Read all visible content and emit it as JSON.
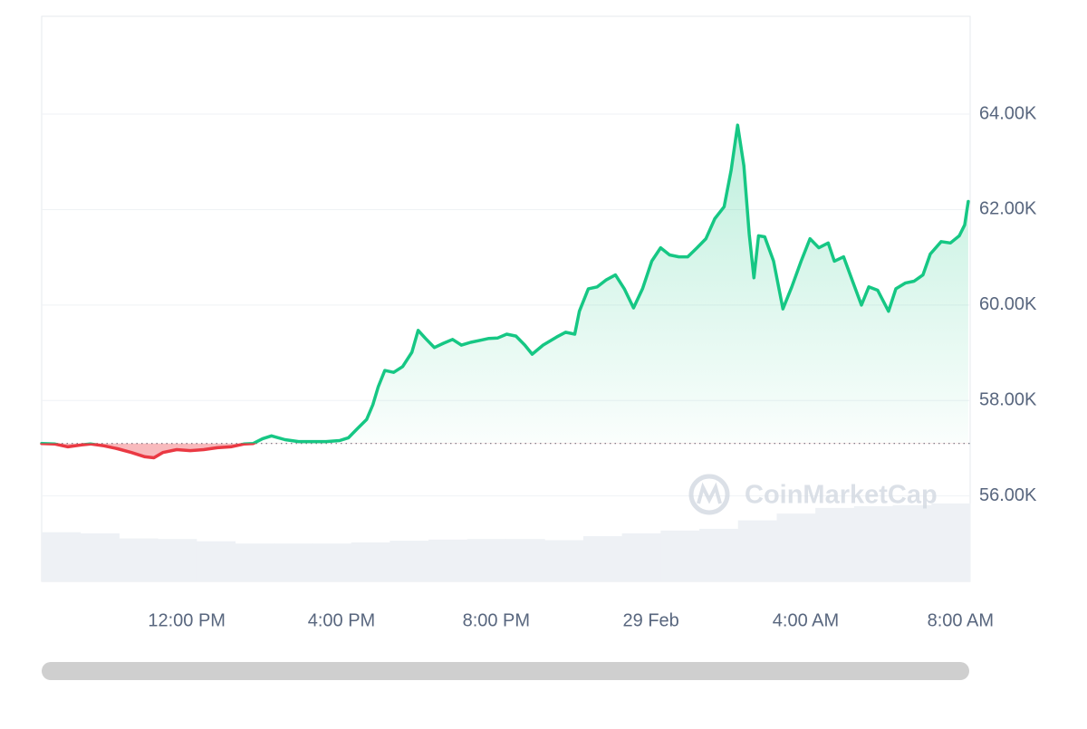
{
  "chart_data": {
    "type": "line",
    "watermark": "CoinMarketCap",
    "x": [
      8.25,
      8.58,
      8.93,
      9.28,
      9.51,
      9.86,
      10.21,
      10.57,
      10.92,
      11.15,
      11.38,
      11.74,
      12.09,
      12.44,
      12.79,
      13.14,
      13.49,
      13.72,
      13.96,
      14.19,
      14.54,
      14.89,
      15.24,
      15.6,
      15.95,
      16.18,
      16.41,
      16.65,
      16.81,
      16.95,
      17.12,
      17.35,
      17.58,
      17.82,
      17.98,
      18.17,
      18.4,
      18.64,
      18.87,
      19.1,
      19.34,
      19.57,
      19.81,
      20.04,
      20.27,
      20.51,
      20.74,
      20.93,
      21.21,
      21.56,
      21.79,
      22.03,
      22.15,
      22.38,
      22.61,
      22.85,
      23.08,
      23.31,
      23.55,
      23.78,
      24.02,
      24.25,
      24.48,
      24.72,
      24.95,
      25.19,
      25.42,
      25.65,
      25.89,
      26.07,
      26.24,
      26.4,
      26.54,
      26.66,
      26.78,
      26.94,
      27.17,
      27.41,
      27.64,
      27.88,
      28.11,
      28.34,
      28.58,
      28.74,
      28.98,
      29.21,
      29.44,
      29.63,
      29.86,
      30.14,
      30.33,
      30.57,
      30.8,
      31.03,
      31.22,
      31.5,
      31.74,
      31.97,
      32.11,
      32.2
    ],
    "values": [
      57100,
      57090,
      57030,
      57070,
      57090,
      57050,
      56990,
      56910,
      56820,
      56800,
      56910,
      56970,
      56950,
      56970,
      57010,
      57030,
      57090,
      57100,
      57200,
      57260,
      57180,
      57140,
      57140,
      57140,
      57160,
      57220,
      57410,
      57600,
      57910,
      58290,
      58630,
      58590,
      58710,
      59010,
      59470,
      59300,
      59110,
      59200,
      59280,
      59160,
      59220,
      59260,
      59300,
      59310,
      59390,
      59350,
      59160,
      58970,
      59160,
      59330,
      59430,
      59390,
      59870,
      60340,
      60380,
      60530,
      60630,
      60340,
      59940,
      60340,
      60920,
      61200,
      61050,
      61010,
      61010,
      61200,
      61390,
      61810,
      62060,
      62820,
      63770,
      62920,
      61490,
      60570,
      61450,
      61430,
      60920,
      59920,
      60380,
      60920,
      61390,
      61200,
      61300,
      60920,
      61010,
      60500,
      60000,
      60380,
      60310,
      59870,
      60340,
      60460,
      60500,
      60630,
      61070,
      61330,
      61300,
      61450,
      61680,
      62170
    ],
    "baseline": 57100,
    "color_up": "#16c784",
    "color_down": "#ea3943",
    "xlim": [
      8.25,
      32.25
    ],
    "xticks": [
      {
        "value": 12,
        "label": "12:00 PM"
      },
      {
        "value": 16,
        "label": "4:00 PM"
      },
      {
        "value": 20,
        "label": "8:00 PM"
      },
      {
        "value": 24,
        "label": "29 Feb"
      },
      {
        "value": 28,
        "label": "4:00 AM"
      },
      {
        "value": 32,
        "label": "8:00 AM"
      }
    ],
    "ylim": [
      54210,
      66050
    ],
    "yticks": [
      {
        "value": 56000,
        "label": "56.00K"
      },
      {
        "value": 58000,
        "label": "58.00K"
      },
      {
        "value": 60000,
        "label": "60.00K"
      },
      {
        "value": 62000,
        "label": "62.00K"
      },
      {
        "value": 64000,
        "label": "64.00K"
      }
    ],
    "grid": true,
    "volume": {
      "color": "#eef1f5",
      "lim": [
        0,
        100
      ],
      "values": [
        8.7,
        8.5,
        7.6,
        7.5,
        7.1,
        6.7,
        6.7,
        6.7,
        6.9,
        7.2,
        7.4,
        7.5,
        7.5,
        7.3,
        8.0,
        8.5,
        9.0,
        9.3,
        10.8,
        12.0,
        13.0,
        13.3,
        13.5,
        13.8
      ]
    }
  }
}
